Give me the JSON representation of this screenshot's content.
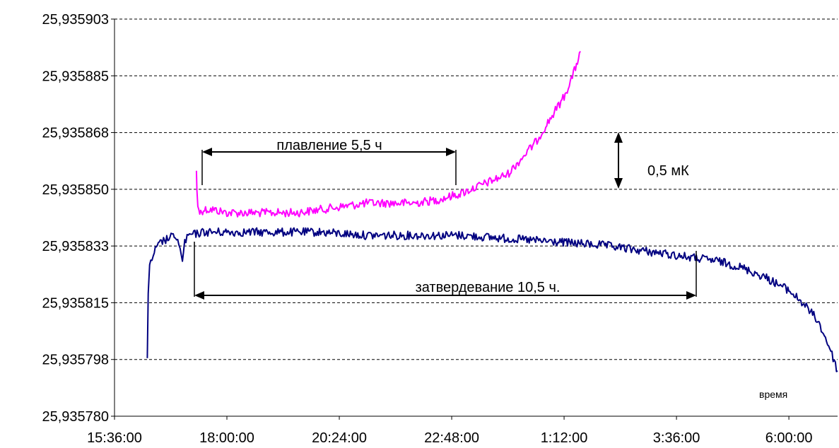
{
  "chart_data": {
    "type": "line",
    "xlabel": "время",
    "ylabel": "",
    "x_tick_labels": [
      "15:36:00",
      "18:00:00",
      "20:24:00",
      "22:48:00",
      "1:12:00",
      "3:36:00",
      "6:00:00"
    ],
    "y_tick_labels": [
      "25,935780",
      "25,935798",
      "25,935815",
      "25,935833",
      "25,935850",
      "25,935868",
      "25,935885",
      "25,935903"
    ],
    "x_ticks_hours": [
      15.6,
      18.0,
      20.4,
      22.8,
      25.2,
      27.6,
      30.0
    ],
    "xlim_hours": [
      15.6,
      31.04
    ],
    "ylim": [
      25.93578,
      25.935903
    ],
    "grid": "horizontal dashed",
    "series": [
      {
        "color": "#ff00ff",
        "x_hours": [
          17.35,
          17.36,
          17.38,
          17.42,
          17.5,
          17.7,
          18.0,
          18.5,
          19.0,
          19.5,
          20.0,
          20.5,
          21.0,
          21.5,
          22.0,
          22.5,
          23.0,
          23.5,
          24.0,
          24.3,
          24.6,
          24.9,
          25.2,
          25.4,
          25.55
        ],
        "values": [
          25.935856,
          25.93585,
          25.935845,
          25.935843,
          25.935844,
          25.935844,
          25.935843,
          25.935843,
          25.935843,
          25.935843,
          25.935844,
          25.935845,
          25.935846,
          25.935846,
          25.935846,
          25.935847,
          25.935849,
          25.935852,
          25.935855,
          25.93586,
          25.935865,
          25.935872,
          25.935879,
          25.935886,
          25.935893
        ]
      },
      {
        "color": "#000080",
        "x_hours": [
          16.3,
          16.32,
          16.35,
          16.45,
          16.6,
          16.9,
          17.0,
          17.05,
          17.1,
          17.2,
          17.5,
          18.0,
          19.0,
          20.0,
          21.0,
          22.0,
          23.0,
          24.0,
          25.0,
          26.0,
          27.0,
          27.5,
          28.0,
          28.5,
          29.0,
          29.5,
          30.0,
          30.3,
          30.6,
          30.85,
          31.04
        ],
        "values": [
          25.935798,
          25.935818,
          25.935826,
          25.935831,
          25.935834,
          25.935836,
          25.935832,
          25.935828,
          25.935834,
          25.935836,
          25.935837,
          25.935837,
          25.935837,
          25.935837,
          25.935836,
          25.935836,
          25.935836,
          25.935835,
          25.935834,
          25.935833,
          25.935831,
          25.93583,
          25.935829,
          25.935828,
          25.935826,
          25.935823,
          25.935819,
          25.935815,
          25.93581,
          25.935802,
          25.935794
        ]
      }
    ],
    "annotations": {
      "melting": "плавление 5,5 ч",
      "solidification": "затвердевание 10,5 ч.",
      "scale": "0,5 мК"
    }
  }
}
